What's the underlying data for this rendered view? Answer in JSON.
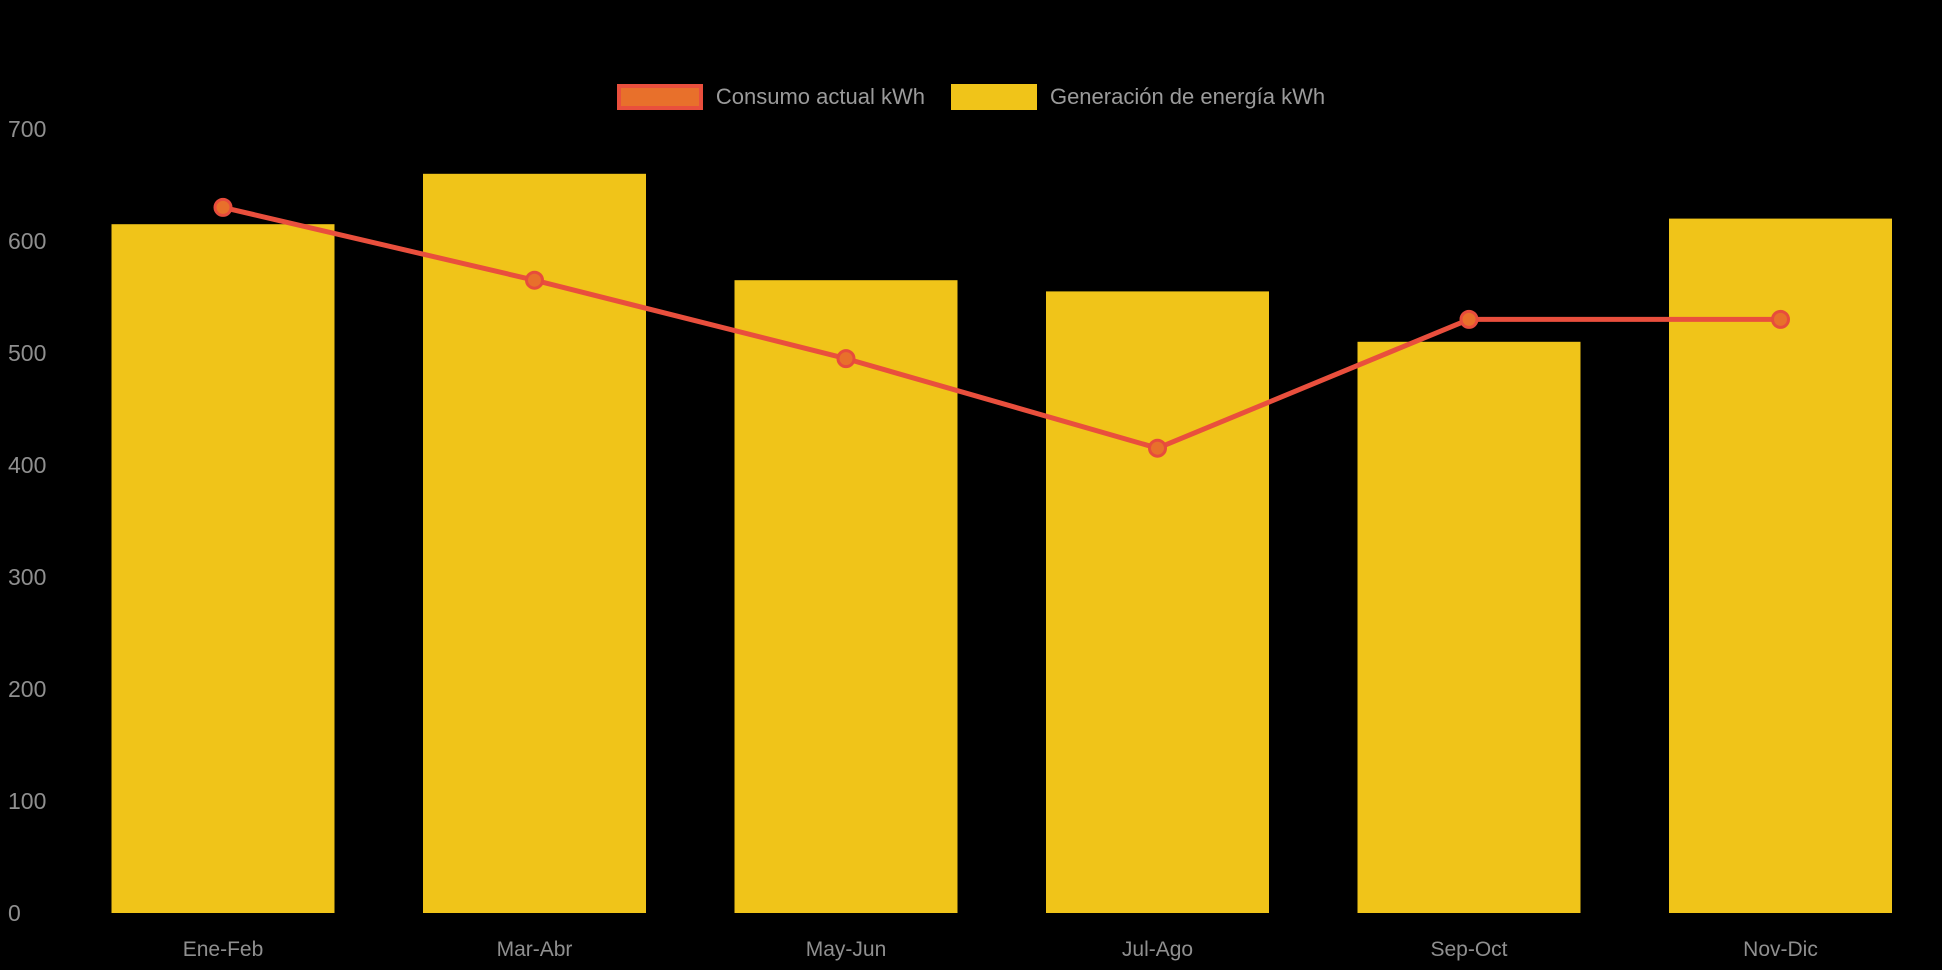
{
  "chart_data": {
    "type": "bar",
    "subtype": "bar-line-combo",
    "categories": [
      "Ene-Feb",
      "Mar-Abr",
      "May-Jun",
      "Jul-Ago",
      "Sep-Oct",
      "Nov-Dic"
    ],
    "series": [
      {
        "name": "Consumo actual kWh",
        "type": "line",
        "values": [
          630,
          565,
          495,
          415,
          530,
          530
        ],
        "line_color": "#E94F3D",
        "point_fill": "#E8702B",
        "point_stroke": "#E74C3C"
      },
      {
        "name": "Generación de energía kWh",
        "type": "bar",
        "values": [
          615,
          660,
          565,
          555,
          510,
          620
        ],
        "color": "#F0C419"
      }
    ],
    "title": "",
    "xlabel": "",
    "ylabel": "",
    "ylim": [
      0,
      700
    ],
    "yticks": [
      0,
      100,
      200,
      300,
      400,
      500,
      600,
      700
    ],
    "grid": false,
    "legend_position": "top",
    "background": "#000000",
    "tick_color": "#8F8F8F",
    "legend_text_color": "#9B9B9B"
  },
  "legend": {
    "items": [
      {
        "label": "Consumo actual kWh"
      },
      {
        "label": "Generación de energía kWh"
      }
    ]
  }
}
